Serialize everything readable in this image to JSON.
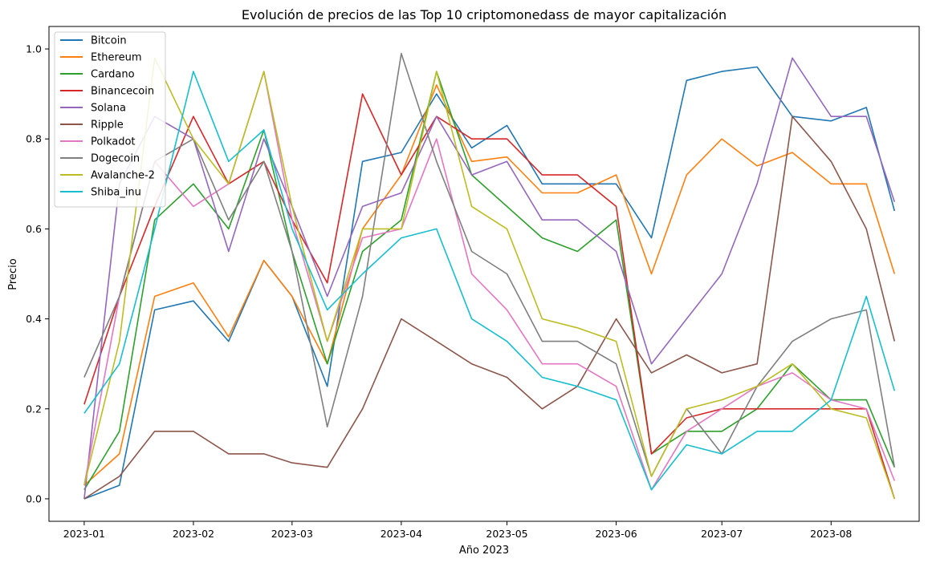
{
  "chart_data": {
    "type": "line",
    "title": "Evolución de precios de las Top 10 criptomonedass de mayor capitalización",
    "xlabel": "Año 2023",
    "ylabel": "Precio",
    "x_ticks": [
      "2023-01",
      "2023-02",
      "2023-03",
      "2023-04",
      "2023-05",
      "2023-06",
      "2023-07",
      "2023-08"
    ],
    "y_ticks": [
      "0.0",
      "0.2",
      "0.4",
      "0.6",
      "0.8",
      "1.0"
    ],
    "ylim": [
      -0.05,
      1.05
    ],
    "xlim": [
      "2022-12-22",
      "2023-08-26"
    ],
    "legend_position": "top-left",
    "grid": false,
    "series": [
      {
        "name": "Bitcoin",
        "color": "#1f77b4",
        "x": [
          "2023-01-01",
          "2023-01-11",
          "2023-01-21",
          "2023-02-01",
          "2023-02-11",
          "2023-02-21",
          "2023-03-01",
          "2023-03-11",
          "2023-03-21",
          "2023-04-01",
          "2023-04-11",
          "2023-04-21",
          "2023-05-01",
          "2023-05-11",
          "2023-05-21",
          "2023-06-01",
          "2023-06-11",
          "2023-06-21",
          "2023-07-01",
          "2023-07-11",
          "2023-07-21",
          "2023-08-01",
          "2023-08-11",
          "2023-08-19"
        ],
        "values": [
          0.0,
          0.03,
          0.42,
          0.44,
          0.35,
          0.53,
          0.45,
          0.25,
          0.75,
          0.77,
          0.9,
          0.78,
          0.83,
          0.7,
          0.7,
          0.7,
          0.58,
          0.93,
          0.95,
          0.96,
          0.85,
          0.84,
          0.87,
          0.64
        ]
      },
      {
        "name": "Ethereum",
        "color": "#ff7f0e",
        "x": [
          "2023-01-01",
          "2023-01-11",
          "2023-01-21",
          "2023-02-01",
          "2023-02-11",
          "2023-02-21",
          "2023-03-01",
          "2023-03-11",
          "2023-03-21",
          "2023-04-01",
          "2023-04-11",
          "2023-04-21",
          "2023-05-01",
          "2023-05-11",
          "2023-05-21",
          "2023-06-01",
          "2023-06-11",
          "2023-06-21",
          "2023-07-01",
          "2023-07-11",
          "2023-07-21",
          "2023-08-01",
          "2023-08-11",
          "2023-08-19"
        ],
        "values": [
          0.03,
          0.1,
          0.45,
          0.48,
          0.36,
          0.53,
          0.45,
          0.3,
          0.6,
          0.72,
          0.92,
          0.75,
          0.76,
          0.68,
          0.68,
          0.72,
          0.5,
          0.72,
          0.8,
          0.74,
          0.77,
          0.7,
          0.7,
          0.5
        ]
      },
      {
        "name": "Cardano",
        "color": "#2ca02c",
        "x": [
          "2023-01-01",
          "2023-01-11",
          "2023-01-21",
          "2023-02-01",
          "2023-02-11",
          "2023-02-21",
          "2023-03-01",
          "2023-03-11",
          "2023-03-21",
          "2023-04-01",
          "2023-04-11",
          "2023-04-21",
          "2023-05-01",
          "2023-05-11",
          "2023-05-21",
          "2023-06-01",
          "2023-06-11",
          "2023-06-21",
          "2023-07-01",
          "2023-07-11",
          "2023-07-21",
          "2023-08-01",
          "2023-08-11",
          "2023-08-19"
        ],
        "values": [
          0.02,
          0.15,
          0.62,
          0.7,
          0.6,
          0.82,
          0.55,
          0.3,
          0.55,
          0.62,
          0.95,
          0.72,
          0.65,
          0.58,
          0.55,
          0.62,
          0.1,
          0.15,
          0.15,
          0.2,
          0.3,
          0.22,
          0.22,
          0.07
        ]
      },
      {
        "name": "Binancecoin",
        "color": "#d62728",
        "x": [
          "2023-01-01",
          "2023-01-11",
          "2023-01-21",
          "2023-02-01",
          "2023-02-11",
          "2023-02-21",
          "2023-03-01",
          "2023-03-11",
          "2023-03-21",
          "2023-04-01",
          "2023-04-11",
          "2023-04-21",
          "2023-05-01",
          "2023-05-11",
          "2023-05-21",
          "2023-06-01",
          "2023-06-11",
          "2023-06-21",
          "2023-07-01",
          "2023-07-11",
          "2023-07-21",
          "2023-08-01",
          "2023-08-11",
          "2023-08-19"
        ],
        "values": [
          0.21,
          0.45,
          0.65,
          0.85,
          0.7,
          0.75,
          0.62,
          0.48,
          0.9,
          0.72,
          0.85,
          0.8,
          0.8,
          0.72,
          0.72,
          0.65,
          0.1,
          0.18,
          0.2,
          0.2,
          0.2,
          0.2,
          0.2,
          0.0
        ]
      },
      {
        "name": "Solana",
        "color": "#9467bd",
        "x": [
          "2023-01-01",
          "2023-01-11",
          "2023-01-21",
          "2023-02-01",
          "2023-02-11",
          "2023-02-21",
          "2023-03-01",
          "2023-03-11",
          "2023-03-21",
          "2023-04-01",
          "2023-04-11",
          "2023-04-21",
          "2023-05-01",
          "2023-05-11",
          "2023-05-21",
          "2023-06-01",
          "2023-06-11",
          "2023-06-21",
          "2023-07-01",
          "2023-07-11",
          "2023-07-21",
          "2023-08-01",
          "2023-08-11",
          "2023-08-19"
        ],
        "values": [
          0.0,
          0.7,
          0.85,
          0.8,
          0.55,
          0.8,
          0.65,
          0.45,
          0.65,
          0.68,
          0.85,
          0.72,
          0.75,
          0.62,
          0.62,
          0.55,
          0.3,
          0.4,
          0.5,
          0.7,
          0.98,
          0.85,
          0.85,
          0.66
        ]
      },
      {
        "name": "Ripple",
        "color": "#8c564b",
        "x": [
          "2023-01-01",
          "2023-01-11",
          "2023-01-21",
          "2023-02-01",
          "2023-02-11",
          "2023-02-21",
          "2023-03-01",
          "2023-03-11",
          "2023-03-21",
          "2023-04-01",
          "2023-04-11",
          "2023-04-21",
          "2023-05-01",
          "2023-05-11",
          "2023-05-21",
          "2023-06-01",
          "2023-06-11",
          "2023-06-21",
          "2023-07-01",
          "2023-07-11",
          "2023-07-21",
          "2023-08-01",
          "2023-08-11",
          "2023-08-19"
        ],
        "values": [
          0.0,
          0.05,
          0.15,
          0.15,
          0.1,
          0.1,
          0.08,
          0.07,
          0.2,
          0.4,
          0.35,
          0.3,
          0.27,
          0.2,
          0.25,
          0.4,
          0.28,
          0.32,
          0.28,
          0.3,
          0.85,
          0.75,
          0.6,
          0.35
        ]
      },
      {
        "name": "Polkadot",
        "color": "#e377c2",
        "x": [
          "2023-01-01",
          "2023-01-11",
          "2023-01-21",
          "2023-02-01",
          "2023-02-11",
          "2023-02-21",
          "2023-03-01",
          "2023-03-11",
          "2023-03-21",
          "2023-04-01",
          "2023-04-11",
          "2023-04-21",
          "2023-05-01",
          "2023-05-11",
          "2023-05-21",
          "2023-06-01",
          "2023-06-11",
          "2023-06-21",
          "2023-07-01",
          "2023-07-11",
          "2023-07-21",
          "2023-08-01",
          "2023-08-11",
          "2023-08-19"
        ],
        "values": [
          0.03,
          0.45,
          0.75,
          0.65,
          0.7,
          0.95,
          0.62,
          0.35,
          0.58,
          0.6,
          0.8,
          0.5,
          0.42,
          0.3,
          0.3,
          0.25,
          0.02,
          0.15,
          0.2,
          0.25,
          0.28,
          0.22,
          0.2,
          0.04
        ]
      },
      {
        "name": "Dogecoin",
        "color": "#7f7f7f",
        "x": [
          "2023-01-01",
          "2023-01-11",
          "2023-01-21",
          "2023-02-01",
          "2023-02-11",
          "2023-02-21",
          "2023-03-01",
          "2023-03-11",
          "2023-03-21",
          "2023-04-01",
          "2023-04-11",
          "2023-04-21",
          "2023-05-01",
          "2023-05-11",
          "2023-05-21",
          "2023-06-01",
          "2023-06-11",
          "2023-06-21",
          "2023-07-01",
          "2023-07-11",
          "2023-07-21",
          "2023-08-01",
          "2023-08-11",
          "2023-08-19"
        ],
        "values": [
          0.27,
          0.45,
          0.75,
          0.8,
          0.62,
          0.75,
          0.55,
          0.16,
          0.45,
          0.99,
          0.75,
          0.55,
          0.5,
          0.35,
          0.35,
          0.3,
          0.05,
          0.2,
          0.1,
          0.25,
          0.35,
          0.4,
          0.42,
          0.07
        ]
      },
      {
        "name": "Avalanche-2",
        "color": "#bcbd22",
        "x": [
          "2023-01-01",
          "2023-01-11",
          "2023-01-21",
          "2023-02-01",
          "2023-02-11",
          "2023-02-21",
          "2023-03-01",
          "2023-03-11",
          "2023-03-21",
          "2023-04-01",
          "2023-04-11",
          "2023-04-21",
          "2023-05-01",
          "2023-05-11",
          "2023-05-21",
          "2023-06-01",
          "2023-06-11",
          "2023-06-21",
          "2023-07-01",
          "2023-07-11",
          "2023-07-21",
          "2023-08-01",
          "2023-08-11",
          "2023-08-19"
        ],
        "values": [
          0.03,
          0.35,
          0.98,
          0.8,
          0.7,
          0.95,
          0.65,
          0.35,
          0.6,
          0.6,
          0.95,
          0.65,
          0.6,
          0.4,
          0.38,
          0.35,
          0.05,
          0.2,
          0.22,
          0.25,
          0.3,
          0.2,
          0.18,
          0.0
        ]
      },
      {
        "name": "Shiba_inu",
        "color": "#17becf",
        "x": [
          "2023-01-01",
          "2023-01-11",
          "2023-01-21",
          "2023-02-01",
          "2023-02-11",
          "2023-02-21",
          "2023-03-01",
          "2023-03-11",
          "2023-03-21",
          "2023-04-01",
          "2023-04-11",
          "2023-04-21",
          "2023-05-01",
          "2023-05-11",
          "2023-05-21",
          "2023-06-01",
          "2023-06-11",
          "2023-06-21",
          "2023-07-01",
          "2023-07-11",
          "2023-07-21",
          "2023-08-01",
          "2023-08-11",
          "2023-08-19"
        ],
        "values": [
          0.19,
          0.3,
          0.6,
          0.95,
          0.75,
          0.82,
          0.6,
          0.42,
          0.5,
          0.58,
          0.6,
          0.4,
          0.35,
          0.27,
          0.25,
          0.22,
          0.02,
          0.12,
          0.1,
          0.15,
          0.15,
          0.22,
          0.45,
          0.24
        ]
      }
    ]
  }
}
